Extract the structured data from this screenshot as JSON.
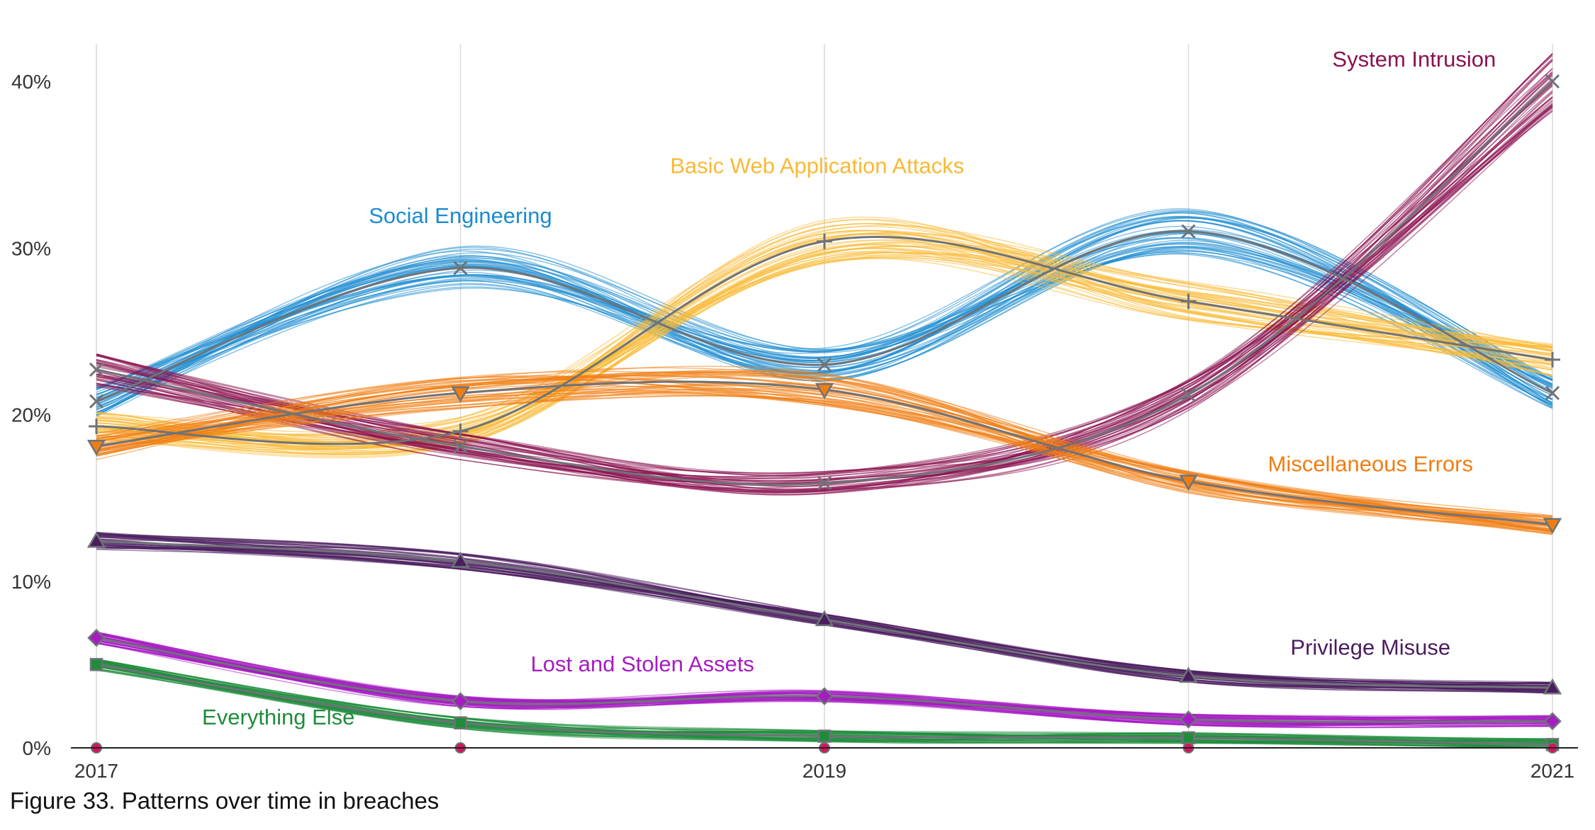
{
  "caption": "Figure 33. Patterns over time in breaches",
  "chart_data": {
    "type": "line",
    "title": "",
    "xlabel": "",
    "ylabel": "",
    "x": [
      2017,
      2018,
      2019,
      2020,
      2021
    ],
    "xticks": [
      {
        "value": 2017,
        "label": "2017"
      },
      {
        "value": 2019,
        "label": "2019"
      },
      {
        "value": 2021,
        "label": "2021"
      }
    ],
    "xgrid": [
      2017,
      2018,
      2019,
      2020,
      2021
    ],
    "xlim": [
      2017,
      2021
    ],
    "ylim": [
      0,
      42
    ],
    "yticks": [
      {
        "value": 0,
        "label": "0%"
      },
      {
        "value": 10,
        "label": "10%"
      },
      {
        "value": 20,
        "label": "20%"
      },
      {
        "value": 30,
        "label": "30%"
      },
      {
        "value": 40,
        "label": "40%"
      }
    ],
    "series": [
      {
        "name": "Social Engineering",
        "color": "#1a8bd0",
        "marker": "x",
        "values": [
          20.8,
          28.8,
          23.0,
          31.0,
          21.3
        ],
        "label_anchor": [
          2018.0,
          31.5
        ]
      },
      {
        "name": "Basic Web Application Attacks",
        "color": "#f9b935",
        "marker": "plus",
        "values": [
          19.3,
          19.0,
          30.4,
          26.8,
          23.3
        ],
        "label_anchor": [
          2018.98,
          34.5
        ]
      },
      {
        "name": "System Intrusion",
        "color": "#8b1250",
        "marker": "x",
        "values": [
          22.7,
          18.1,
          15.9,
          21.2,
          40.0
        ],
        "label_anchor": [
          2020.62,
          40.9
        ]
      },
      {
        "name": "Miscellaneous Errors",
        "color": "#f07d12",
        "marker": "triangle-down",
        "values": [
          18.1,
          21.3,
          21.5,
          16.0,
          13.4
        ],
        "label_anchor": [
          2020.5,
          16.6
        ]
      },
      {
        "name": "Privilege Misuse",
        "color": "#4a1d5e",
        "marker": "triangle-up",
        "values": [
          12.4,
          11.2,
          7.7,
          4.3,
          3.6
        ],
        "label_anchor": [
          2020.5,
          5.6
        ]
      },
      {
        "name": "Lost and Stolen Assets",
        "color": "#a61cc2",
        "marker": "diamond",
        "values": [
          6.6,
          2.8,
          3.1,
          1.7,
          1.6
        ],
        "label_anchor": [
          2018.5,
          4.6
        ]
      },
      {
        "name": "Everything Else",
        "color": "#1f8c3c",
        "marker": "square",
        "values": [
          5.0,
          1.5,
          0.7,
          0.6,
          0.2
        ],
        "label_anchor": [
          2017.5,
          1.4
        ]
      },
      {
        "name": "",
        "color": "#d6145a",
        "marker": "circle",
        "values": [
          0.0,
          0.0,
          0.0,
          0.0,
          0.0
        ],
        "label_anchor": null
      }
    ]
  }
}
